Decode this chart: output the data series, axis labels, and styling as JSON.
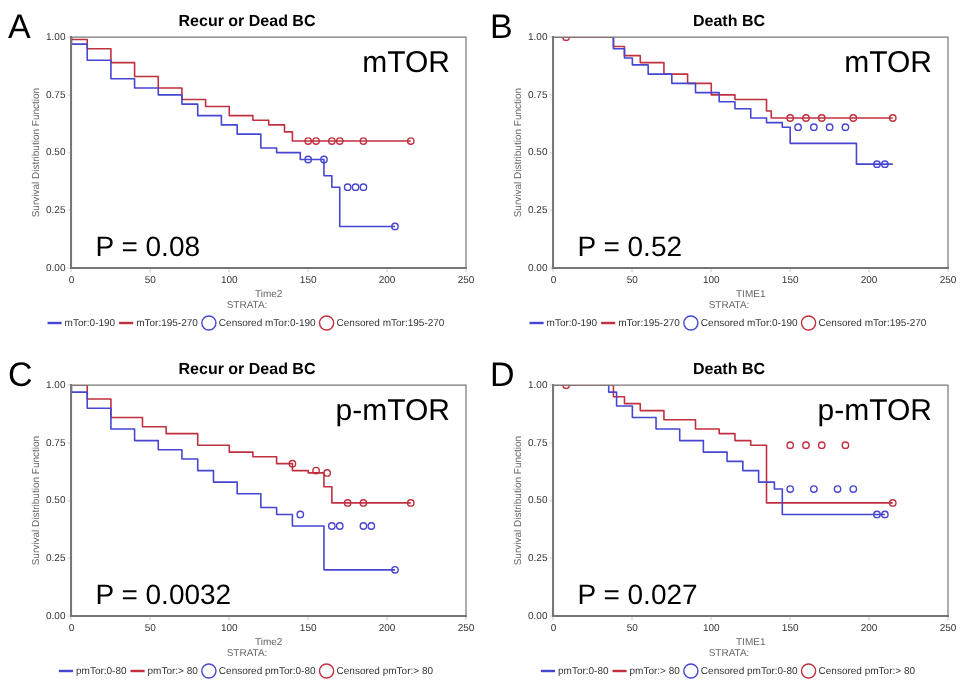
{
  "chart_data": [
    {
      "type": "step",
      "title": "Recur or Dead BC",
      "xlabel": "Time2",
      "ylabel": "Survival Distribution Function",
      "legend_title": "STRATA:",
      "legend": "bottom",
      "grid": false,
      "marker": "none",
      "annotations": [
        "A",
        "mTOR",
        "P = 0.08"
      ],
      "xlim": [
        0,
        250
      ],
      "xticks": [
        0,
        50,
        100,
        150,
        200,
        250
      ],
      "ylim": [
        0,
        1
      ],
      "yticks": [
        {
          "value": 0,
          "label": "0.00"
        },
        {
          "value": 0.25,
          "label": "0.25"
        },
        {
          "value": 0.5,
          "label": "0.50"
        },
        {
          "value": 0.75,
          "label": "0.75"
        },
        {
          "value": 1,
          "label": "1.00"
        }
      ],
      "series": [
        {
          "name": "mTor:0-190",
          "color": "#4646d2",
          "x": [
            0,
            10,
            25,
            40,
            55,
            70,
            80,
            95,
            105,
            120,
            130,
            145,
            160,
            165,
            170,
            205
          ],
          "values": [
            1,
            0.97,
            0.9,
            0.82,
            0.78,
            0.75,
            0.71,
            0.66,
            0.62,
            0.58,
            0.52,
            0.5,
            0.47,
            0.4,
            0.35,
            0.18
          ]
        },
        {
          "name": "mTor:195-270",
          "color": "#c0303f",
          "x": [
            0,
            10,
            25,
            40,
            55,
            70,
            85,
            100,
            115,
            125,
            135,
            140,
            148,
            215
          ],
          "values": [
            1,
            0.99,
            0.95,
            0.89,
            0.83,
            0.78,
            0.73,
            0.7,
            0.66,
            0.64,
            0.62,
            0.59,
            0.55,
            0.55
          ]
        },
        {
          "name": "Censored mTor:0-190",
          "type": "scatter",
          "marker": "circle",
          "color": "#4646d2",
          "x": [
            150,
            160,
            175,
            180,
            185,
            205
          ],
          "values": [
            0.47,
            0.47,
            0.35,
            0.35,
            0.35,
            0.18
          ]
        },
        {
          "name": "Censored mTor:195-270",
          "type": "scatter",
          "marker": "circle",
          "color": "#c0303f",
          "x": [
            150,
            155,
            165,
            170,
            185,
            215
          ],
          "values": [
            0.55,
            0.55,
            0.55,
            0.55,
            0.55,
            0.55
          ]
        }
      ]
    },
    {
      "type": "step",
      "title": "Death BC",
      "xlabel": "TIME1",
      "ylabel": "Survival Distribution Function",
      "legend_title": "STRATA:",
      "legend": "bottom",
      "grid": false,
      "marker": "none",
      "annotations": [
        "B",
        "mTOR",
        "P = 0.52"
      ],
      "xlim": [
        0,
        250
      ],
      "xticks": [
        0,
        50,
        100,
        150,
        200,
        250
      ],
      "ylim": [
        0,
        1
      ],
      "yticks": [
        {
          "value": 0,
          "label": "0.00"
        },
        {
          "value": 0.25,
          "label": "0.25"
        },
        {
          "value": 0.5,
          "label": "0.50"
        },
        {
          "value": 0.75,
          "label": "0.75"
        },
        {
          "value": 1,
          "label": "1.00"
        }
      ],
      "series": [
        {
          "name": "mTor:0-190",
          "color": "#4646d2",
          "x": [
            38,
            45,
            50,
            60,
            75,
            90,
            105,
            115,
            125,
            135,
            145,
            150,
            192,
            197,
            215
          ],
          "values": [
            1,
            0.95,
            0.91,
            0.88,
            0.84,
            0.8,
            0.76,
            0.72,
            0.69,
            0.65,
            0.63,
            0.61,
            0.54,
            0.45,
            0.45
          ]
        },
        {
          "name": "mTor:195-270",
          "color": "#c0303f",
          "x": [
            0,
            38,
            45,
            55,
            70,
            85,
            100,
            115,
            135,
            138,
            145,
            215
          ],
          "values": [
            1,
            1,
            0.96,
            0.92,
            0.89,
            0.84,
            0.8,
            0.75,
            0.73,
            0.68,
            0.65,
            0.65
          ]
        },
        {
          "name": "Censored mTor:0-190",
          "type": "scatter",
          "marker": "circle",
          "color": "#4646d2",
          "x": [
            155,
            165,
            175,
            185,
            205,
            210
          ],
          "values": [
            0.61,
            0.61,
            0.61,
            0.61,
            0.45,
            0.45
          ]
        },
        {
          "name": "Censored mTor:195-270",
          "type": "scatter",
          "marker": "circle",
          "color": "#c0303f",
          "x": [
            8,
            150,
            160,
            170,
            190,
            215
          ],
          "values": [
            1,
            0.65,
            0.65,
            0.65,
            0.65,
            0.65
          ]
        }
      ]
    },
    {
      "type": "step",
      "title": "Recur or Dead BC",
      "xlabel": "Time2",
      "ylabel": "Survival Distribution Function",
      "legend_title": "STRATA:",
      "legend": "bottom",
      "grid": false,
      "marker": "none",
      "annotations": [
        "C",
        "p-mTOR",
        "P = 0.0032"
      ],
      "xlim": [
        0,
        250
      ],
      "xticks": [
        0,
        50,
        100,
        150,
        200,
        250
      ],
      "ylim": [
        0,
        1
      ],
      "yticks": [
        {
          "value": 0,
          "label": "0.00"
        },
        {
          "value": 0.25,
          "label": "0.25"
        },
        {
          "value": 0.5,
          "label": "0.50"
        },
        {
          "value": 0.75,
          "label": "0.75"
        },
        {
          "value": 1,
          "label": "1.00"
        }
      ],
      "series": [
        {
          "name": "pmTor:0-80",
          "color": "#4646d2",
          "x": [
            0,
            10,
            25,
            40,
            55,
            70,
            80,
            90,
            105,
            120,
            130,
            140,
            160,
            205
          ],
          "values": [
            1,
            0.97,
            0.9,
            0.81,
            0.76,
            0.72,
            0.68,
            0.63,
            0.58,
            0.53,
            0.47,
            0.44,
            0.39,
            0.2
          ]
        },
        {
          "name": "pmTor:> 80",
          "color": "#c0303f",
          "x": [
            0,
            10,
            25,
            45,
            60,
            80,
            100,
            115,
            130,
            140,
            150,
            160,
            165,
            170,
            215
          ],
          "values": [
            1,
            1,
            0.94,
            0.86,
            0.82,
            0.79,
            0.74,
            0.71,
            0.69,
            0.66,
            0.63,
            0.62,
            0.56,
            0.49,
            0.49
          ]
        },
        {
          "name": "Censored pmTor:0-80",
          "type": "scatter",
          "marker": "circle",
          "color": "#4646d2",
          "x": [
            145,
            165,
            170,
            185,
            190,
            205
          ],
          "values": [
            0.44,
            0.39,
            0.39,
            0.39,
            0.39,
            0.2
          ]
        },
        {
          "name": "Censored pmTor:> 80",
          "type": "scatter",
          "marker": "circle",
          "color": "#c0303f",
          "x": [
            140,
            155,
            162,
            175,
            185,
            215
          ],
          "values": [
            0.66,
            0.63,
            0.62,
            0.49,
            0.49,
            0.49
          ]
        }
      ]
    },
    {
      "type": "step",
      "title": "Death BC",
      "xlabel": "TIME1",
      "ylabel": "Survival Distribution Function",
      "legend_title": "STRATA:",
      "legend": "bottom",
      "grid": false,
      "marker": "none",
      "annotations": [
        "D",
        "p-mTOR",
        "P = 0.027"
      ],
      "xlim": [
        0,
        250
      ],
      "xticks": [
        0,
        50,
        100,
        150,
        200,
        250
      ],
      "ylim": [
        0,
        1
      ],
      "yticks": [
        {
          "value": 0,
          "label": "0.00"
        },
        {
          "value": 0.25,
          "label": "0.25"
        },
        {
          "value": 0.5,
          "label": "0.50"
        },
        {
          "value": 0.75,
          "label": "0.75"
        },
        {
          "value": 1,
          "label": "1.00"
        }
      ],
      "series": [
        {
          "name": "pmTor:0-80",
          "color": "#4646d2",
          "x": [
            35,
            40,
            50,
            65,
            80,
            95,
            110,
            120,
            130,
            140,
            145,
            200,
            210
          ],
          "values": [
            1,
            0.97,
            0.91,
            0.86,
            0.81,
            0.76,
            0.71,
            0.67,
            0.63,
            0.58,
            0.55,
            0.44,
            0.44
          ]
        },
        {
          "name": "pmTor:> 80",
          "color": "#c0303f",
          "x": [
            0,
            38,
            45,
            55,
            70,
            90,
            105,
            115,
            125,
            135,
            190,
            215
          ],
          "values": [
            1,
            1,
            0.95,
            0.92,
            0.89,
            0.85,
            0.81,
            0.79,
            0.76,
            0.74,
            0.49,
            0.49
          ]
        },
        {
          "name": "Censored pmTor:0-80",
          "type": "scatter",
          "marker": "circle",
          "color": "#4646d2",
          "x": [
            150,
            165,
            180,
            190,
            205,
            210
          ],
          "values": [
            0.55,
            0.55,
            0.55,
            0.55,
            0.44,
            0.44
          ]
        },
        {
          "name": "Censored pmTor:> 80",
          "type": "scatter",
          "marker": "circle",
          "color": "#c0303f",
          "x": [
            8,
            150,
            160,
            170,
            185,
            215
          ],
          "values": [
            1,
            0.74,
            0.74,
            0.74,
            0.74,
            0.49
          ]
        }
      ]
    }
  ]
}
